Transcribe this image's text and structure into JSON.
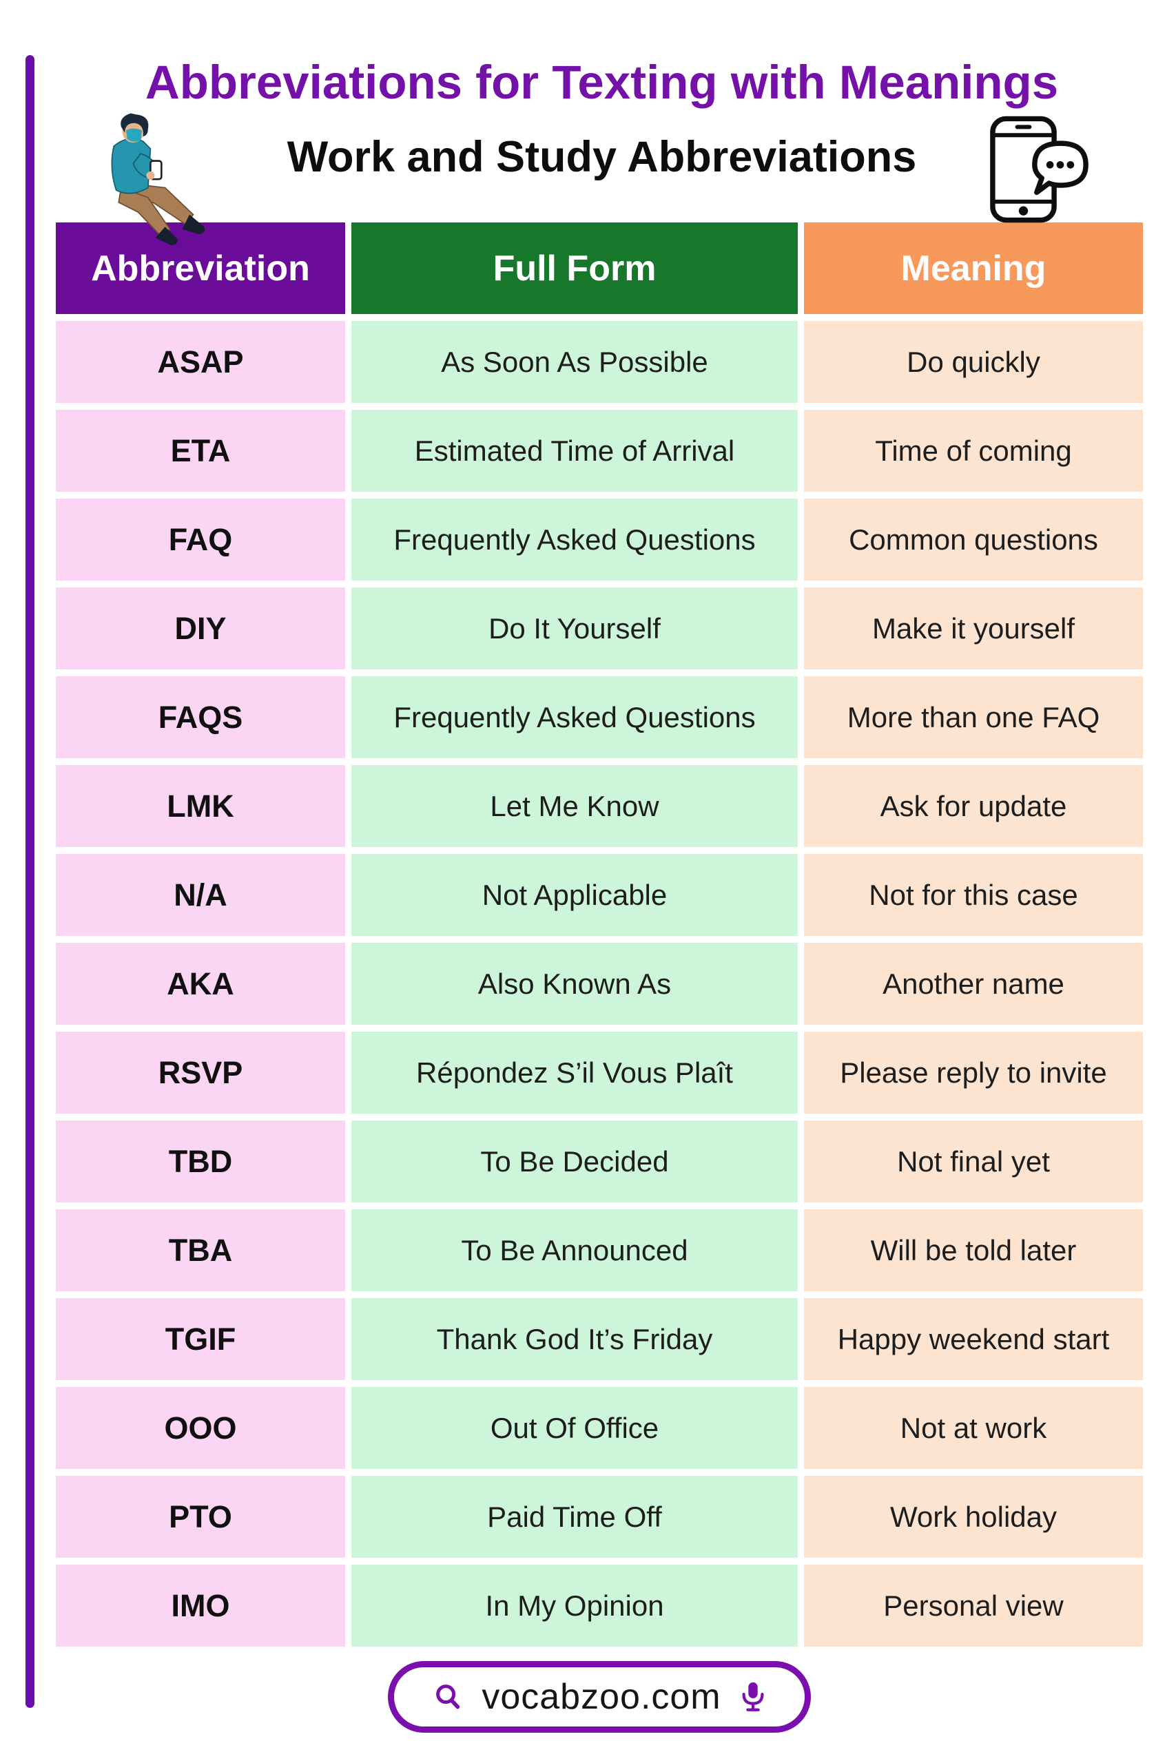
{
  "header": {
    "title": "Abbreviations for Texting with Meanings",
    "subtitle": "Work and Study Abbreviations",
    "person_icon": "person-texting-illustration",
    "phone_icon": "phone-chat-icon"
  },
  "table": {
    "columns": [
      {
        "label": "Abbreviation",
        "header_color": "#6a0b99",
        "cell_color": "#fbd6f4"
      },
      {
        "label": "Full Form",
        "header_color": "#17782b",
        "cell_color": "#cdf5d9"
      },
      {
        "label": "Meaning",
        "header_color": "#f8995c",
        "cell_color": "#fce4d1"
      }
    ],
    "rows": [
      {
        "abbreviation": "ASAP",
        "full_form": "As Soon As Possible",
        "meaning": "Do quickly"
      },
      {
        "abbreviation": "ETA",
        "full_form": "Estimated Time of Arrival",
        "meaning": "Time of coming"
      },
      {
        "abbreviation": "FAQ",
        "full_form": "Frequently Asked Questions",
        "meaning": "Common questions"
      },
      {
        "abbreviation": "DIY",
        "full_form": "Do It Yourself",
        "meaning": "Make it yourself"
      },
      {
        "abbreviation": "FAQS",
        "full_form": "Frequently Asked Questions",
        "meaning": "More than one FAQ"
      },
      {
        "abbreviation": "LMK",
        "full_form": "Let Me Know",
        "meaning": "Ask for update"
      },
      {
        "abbreviation": "N/A",
        "full_form": "Not Applicable",
        "meaning": "Not for this case"
      },
      {
        "abbreviation": "AKA",
        "full_form": "Also Known As",
        "meaning": "Another name"
      },
      {
        "abbreviation": "RSVP",
        "full_form": "Répondez S’il Vous Plaît",
        "meaning": "Please reply to invite"
      },
      {
        "abbreviation": "TBD",
        "full_form": "To Be Decided",
        "meaning": "Not final yet"
      },
      {
        "abbreviation": "TBA",
        "full_form": "To Be Announced",
        "meaning": "Will be told later"
      },
      {
        "abbreviation": "TGIF",
        "full_form": "Thank God It’s Friday",
        "meaning": "Happy weekend start"
      },
      {
        "abbreviation": "OOO",
        "full_form": "Out Of Office",
        "meaning": "Not at work"
      },
      {
        "abbreviation": "PTO",
        "full_form": "Paid Time Off",
        "meaning": "Work holiday"
      },
      {
        "abbreviation": "IMO",
        "full_form": "In My Opinion",
        "meaning": "Personal view"
      }
    ]
  },
  "footer": {
    "website": "vocabzoo.com",
    "search_icon": "search-icon",
    "mic_icon": "microphone-icon"
  },
  "colors": {
    "title_color": "#7311a8",
    "accent_bar": "#6a0dad",
    "badge_border": "#7a0fae"
  }
}
